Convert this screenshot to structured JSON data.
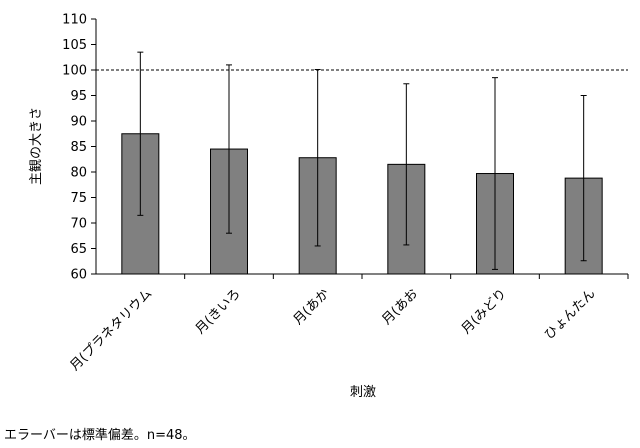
{
  "chart_data": {
    "type": "bar",
    "title": "",
    "xlabel": "刺激",
    "ylabel": "主観の大きさ",
    "ylim": [
      60,
      110
    ],
    "yticks": [
      60,
      65,
      70,
      75,
      80,
      85,
      90,
      95,
      100,
      105,
      110
    ],
    "categories": [
      "月(プラネタリウム",
      "月(きいろ",
      "月(あか",
      "月(あお",
      "月(みどり",
      "ひょんたん"
    ],
    "values": [
      87.5,
      84.5,
      82.8,
      81.5,
      79.7,
      78.8
    ],
    "error": [
      16.0,
      16.5,
      17.3,
      15.8,
      18.8,
      16.2
    ],
    "reference_line": 100,
    "grid": false,
    "bar_color": "#808080"
  },
  "footnote": "エラーバーは標準偏差。n=48。"
}
